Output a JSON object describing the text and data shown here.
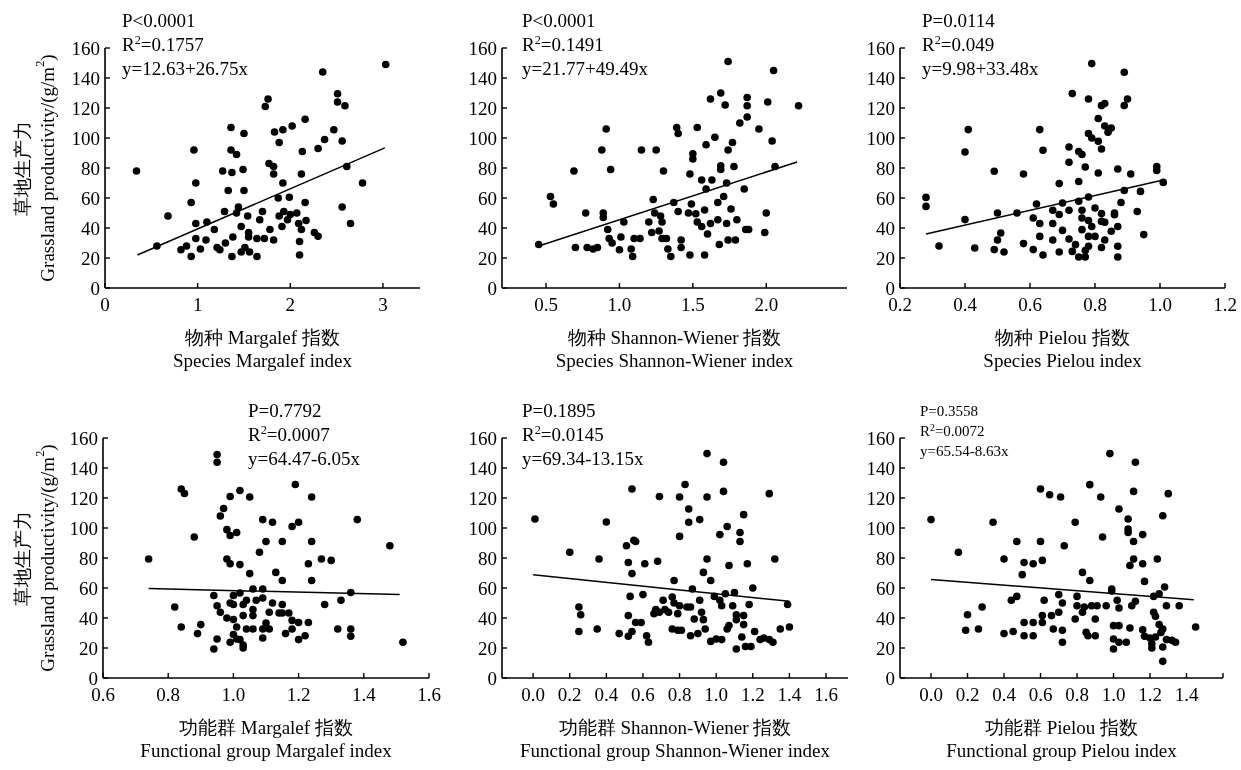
{
  "chart_data": [
    {
      "type": "scatter",
      "xlabel": "物种 Margalef 指数\nSpecies Margalef index",
      "ylabel": "草地生产力\nGrassland productivity/(g/m$^{2}$)",
      "annotations": [
        "P<0.0001",
        "R$^{2}$=0.1757",
        "y=12.63+26.75x"
      ],
      "marker": "circle",
      "xlim": [
        0,
        3.4
      ],
      "xticks": [
        0,
        1,
        2,
        3
      ],
      "ylim": [
        0,
        160
      ],
      "yticks": [
        0,
        20,
        40,
        60,
        80,
        100,
        120,
        140,
        160
      ],
      "series": [
        {
          "type": "scatter",
          "color": "#000000",
          "x": [
            0.34,
            0.56,
            0.68,
            0.82,
            0.88,
            0.93,
            0.93,
            0.96,
            0.98,
            0.98,
            0.98,
            1.03,
            1.09,
            1.1,
            1.18,
            1.21,
            1.24,
            1.27,
            1.29,
            1.3,
            1.33,
            1.36,
            1.36,
            1.37,
            1.37,
            1.38,
            1.42,
            1.42,
            1.44,
            1.47,
            1.47,
            1.49,
            1.5,
            1.5,
            1.51,
            1.54,
            1.55,
            1.55,
            1.56,
            1.64,
            1.64,
            1.67,
            1.7,
            1.72,
            1.73,
            1.76,
            1.77,
            1.78,
            1.82,
            1.82,
            1.82,
            1.83,
            1.88,
            1.87,
            1.88,
            1.91,
            1.92,
            1.92,
            1.93,
            1.97,
            1.99,
            2.0,
            2.02,
            2.07,
            2.09,
            2.1,
            2.1,
            2.12,
            2.12,
            2.13,
            2.16,
            2.16,
            2.17,
            2.26,
            2.3,
            2.3,
            2.35,
            2.37,
            2.47,
            2.51,
            2.51,
            2.56,
            2.56,
            2.59,
            2.61,
            2.65,
            2.78,
            3.03
          ],
          "values": [
            78,
            28,
            48,
            25.5,
            28,
            21,
            57,
            92,
            70,
            43,
            33,
            26,
            32,
            44,
            39,
            27,
            25.5,
            78,
            51,
            30,
            65,
            92,
            107,
            77,
            21,
            34,
            89,
            50,
            54,
            41,
            24,
            79,
            103,
            65,
            27,
            48,
            37,
            34,
            24,
            21,
            33,
            45.5,
            51,
            33,
            121,
            126,
            83,
            39,
            32,
            81,
            76,
            104,
            97,
            60,
            48,
            41,
            70,
            105.5,
            51,
            45.5,
            60.5,
            49,
            108,
            50,
            43,
            22,
            31,
            76,
            39,
            91,
            57,
            112.5,
            45,
            37,
            34.5,
            93,
            144,
            99,
            105.5,
            129.5,
            124,
            98,
            54,
            121.5,
            81,
            43,
            70,
            149
          ]
        },
        {
          "type": "line",
          "marker": "none",
          "color": "#000000",
          "x": [
            0.35,
            3.02
          ],
          "values": [
            22,
            93.4
          ]
        }
      ]
    },
    {
      "type": "scatter",
      "xlabel": "物种 Shannon-Wiener 指数\nSpecies Shannon-Wiener index",
      "annotations": [
        "P<0.0001",
        "R$^{2}$=0.1491",
        "y=21.77+49.49x"
      ],
      "marker": "circle",
      "xlim": [
        0.2,
        2.55
      ],
      "xticks": [
        0.5,
        {
          "value": 1,
          "label": "1.0"
        },
        1.5,
        {
          "value": 2,
          "label": "2.0"
        }
      ],
      "ylim": [
        0,
        160
      ],
      "yticks": [
        0,
        20,
        40,
        60,
        80,
        100,
        120,
        140,
        160
      ],
      "series": [
        {
          "type": "scatter",
          "color": "#000000",
          "x": [
            0.45,
            0.53,
            0.55,
            0.69,
            0.7,
            0.77,
            0.78,
            0.82,
            0.85,
            0.88,
            0.89,
            0.89,
            0.91,
            0.92,
            0.93,
            0.94,
            0.95,
            1.0,
            1.01,
            1.03,
            1.08,
            1.09,
            1.1,
            1.14,
            1.15,
            1.2,
            1.22,
            1.23,
            1.24,
            1.25,
            1.27,
            1.28,
            1.29,
            1.29,
            1.3,
            1.32,
            1.33,
            1.35,
            1.37,
            1.39,
            1.4,
            1.4,
            1.42,
            1.42,
            1.47,
            1.48,
            1.48,
            1.49,
            1.5,
            1.5,
            1.52,
            1.53,
            1.53,
            1.56,
            1.56,
            1.58,
            1.58,
            1.59,
            1.6,
            1.59,
            1.62,
            1.62,
            1.63,
            1.65,
            1.67,
            1.67,
            1.68,
            1.69,
            1.69,
            1.69,
            1.71,
            1.72,
            1.73,
            1.73,
            1.74,
            1.74,
            1.74,
            1.76,
            1.77,
            1.78,
            1.79,
            1.8,
            1.82,
            1.85,
            1.86,
            1.87,
            1.87,
            1.87,
            1.88,
            1.95,
            1.99,
            2.0,
            2.01,
            2.04,
            2.05,
            2.06,
            2.22
          ],
          "values": [
            29,
            61,
            56,
            78,
            27,
            50,
            27,
            26,
            27,
            92,
            50,
            47,
            106,
            39,
            33,
            79,
            30,
            25.5,
            34,
            44,
            26,
            21,
            33,
            33,
            92,
            44,
            37,
            59,
            50,
            92,
            38,
            48,
            33,
            44,
            78,
            33,
            26,
            21,
            57,
            107,
            103,
            51,
            32,
            27,
            50,
            76,
            22,
            56,
            86,
            89.5,
            49.5,
            44,
            107,
            72,
            41,
            22,
            52,
            95.5,
            36,
            66,
            43,
            126,
            72,
            100.5,
            57,
            45.5,
            29,
            130,
            81.5,
            79,
            61,
            122,
            70,
            43,
            151,
            32,
            92,
            52.7,
            97,
            81,
            32,
            45.5,
            110,
            66,
            39,
            114,
            121.5,
            127,
            39,
            106,
            37,
            50,
            124,
            98,
            145,
            81,
            121.5
          ]
        },
        {
          "type": "line",
          "marker": "none",
          "color": "#000000",
          "x": [
            0.45,
            2.21
          ],
          "values": [
            28,
            84
          ]
        }
      ]
    },
    {
      "type": "scatter",
      "xlabel": "物种 Pielou 指数\nSpecies Pielou index",
      "annotations": [
        "P=0.0114",
        "R$^{2}$=0.049",
        "y=9.98+33.48x"
      ],
      "marker": "circle",
      "xlim": [
        0.2,
        1.2
      ],
      "xticks": [
        0.2,
        0.4,
        0.6,
        0.8,
        {
          "value": 1,
          "label": "1.0"
        },
        1.2
      ],
      "ylim": [
        0,
        160
      ],
      "yticks": [
        0,
        20,
        40,
        60,
        80,
        100,
        120,
        140,
        160
      ],
      "series": [
        {
          "type": "scatter",
          "color": "#000000",
          "x": [
            0.28,
            0.28,
            0.32,
            0.4,
            0.41,
            0.4,
            0.43,
            0.49,
            0.49,
            0.5,
            0.5,
            0.51,
            0.52,
            0.56,
            0.58,
            0.58,
            0.61,
            0.62,
            0.61,
            0.63,
            0.63,
            0.63,
            0.64,
            0.64,
            0.67,
            0.67,
            0.67,
            0.69,
            0.69,
            0.69,
            0.7,
            0.7,
            0.72,
            0.72,
            0.72,
            0.72,
            0.73,
            0.73,
            0.74,
            0.75,
            0.75,
            0.75,
            0.75,
            0.76,
            0.76,
            0.76,
            0.76,
            0.77,
            0.77,
            0.77,
            0.78,
            0.78,
            0.78,
            0.78,
            0.78,
            0.78,
            0.79,
            0.79,
            0.79,
            0.8,
            0.8,
            0.81,
            0.81,
            0.81,
            0.82,
            0.82,
            0.82,
            0.82,
            0.82,
            0.83,
            0.83,
            0.83,
            0.83,
            0.84,
            0.85,
            0.85,
            0.86,
            0.86,
            0.87,
            0.87,
            0.87,
            0.87,
            0.88,
            0.89,
            0.89,
            0.89,
            0.9,
            0.91,
            0.93,
            0.94,
            0.95,
            0.99,
            0.99,
            1.01
          ],
          "values": [
            60.4,
            54.4,
            28,
            90.7,
            105.6,
            45.6,
            26.7,
            77.8,
            25.6,
            50,
            32,
            36.7,
            24,
            50,
            76,
            29.6,
            46.7,
            56,
            25.6,
            105.6,
            43,
            34.4,
            22,
            91.8,
            43,
            51.8,
            32,
            24,
            69.6,
            49,
            38.4,
            56.7,
            32.7,
            94,
            83.8,
            51.8,
            129.6,
            24.4,
            28.9,
            71,
            91,
            20.7,
            57.8,
            38.9,
            51.8,
            89,
            46.7,
            25,
            20.7,
            80.7,
            34.4,
            126,
            103,
            60.7,
            45,
            27.8,
            149.6,
            100,
            41,
            34.4,
            53.3,
            97.8,
            113,
            76.7,
            44.4,
            121.6,
            49.6,
            92.7,
            27,
            108,
            43.8,
            123,
            32,
            103.8,
            37.8,
            106.7,
            48.9,
            50,
            41,
            79.3,
            27.8,
            20.7,
            57,
            65,
            143.8,
            121.6,
            126,
            76,
            51,
            64.4,
            35.6,
            78.4,
            81,
            70.4
          ]
        },
        {
          "type": "line",
          "marker": "none",
          "color": "#000000",
          "x": [
            0.28,
            1.01
          ],
          "values": [
            36,
            72
          ]
        }
      ]
    },
    {
      "type": "scatter",
      "xlabel": "功能群 Margalef 指数\nFunctional group Margalef index",
      "ylabel": "草地生产力\nGrassland productivity/(g/m$^{2}$)",
      "annotations": [
        "P=0.7792",
        "R$^{2}$=0.0007",
        "y=64.47-6.05x"
      ],
      "marker": "circle",
      "xlim": [
        0.6,
        1.6
      ],
      "xticks": [
        0.6,
        0.8,
        {
          "value": 1,
          "label": "1.0"
        },
        1.2,
        1.4,
        1.6
      ],
      "ylim": [
        0,
        160
      ],
      "yticks": [
        0,
        20,
        40,
        60,
        80,
        100,
        120,
        140,
        160
      ],
      "series": [
        {
          "type": "scatter",
          "color": "#000000",
          "x": [
            0.74,
            0.82,
            0.84,
            0.84,
            0.85,
            0.88,
            0.89,
            0.9,
            0.94,
            0.94,
            0.95,
            0.95,
            0.95,
            0.95,
            0.96,
            0.96,
            0.97,
            0.98,
            0.98,
            0.98,
            0.99,
            0.99,
            0.99,
            0.99,
            0.99,
            1.0,
            1.0,
            1.0,
            1.0,
            1.01,
            1.01,
            1.01,
            1.02,
            1.02,
            1.02,
            1.02,
            1.03,
            1.03,
            1.03,
            1.03,
            1.04,
            1.04,
            1.05,
            1.05,
            1.06,
            1.06,
            1.06,
            1.06,
            1.07,
            1.08,
            1.09,
            1.09,
            1.09,
            1.09,
            1.09,
            1.1,
            1.1,
            1.11,
            1.11,
            1.12,
            1.12,
            1.13,
            1.14,
            1.15,
            1.15,
            1.15,
            1.15,
            1.16,
            1.17,
            1.18,
            1.18,
            1.18,
            1.19,
            1.2,
            1.2,
            1.2,
            1.22,
            1.23,
            1.23,
            1.24,
            1.24,
            1.24,
            1.27,
            1.28,
            1.3,
            1.32,
            1.33,
            1.36,
            1.36,
            1.36,
            1.38,
            1.48,
            1.52
          ],
          "values": [
            79.3,
            47.3,
            34,
            126,
            123,
            94,
            29.6,
            35.6,
            19.3,
            55,
            26,
            149,
            143.8,
            48.2,
            43.8,
            108,
            113,
            79.3,
            98.9,
            40,
            50,
            23.8,
            76.2,
            121,
            95,
            29,
            55,
            39,
            49,
            97,
            26,
            34,
            125,
            56.7,
            25.6,
            75.6,
            49,
            22,
            41.6,
            20,
            32.7,
            51.8,
            120.7,
            69.6,
            45.6,
            59.3,
            41.6,
            32.7,
            51.8,
            83.8,
            26.7,
            105.6,
            59.3,
            32.7,
            53.3,
            91,
            36.7,
            43.8,
            32.7,
            50,
            103.8,
            70.4,
            43.3,
            91,
            65,
            49,
            43.3,
            29.6,
            43.3,
            101,
            38.4,
            32.7,
            129,
            103.8,
            25.6,
            37,
            28.2,
            37,
            76.2,
            120.7,
            91,
            65,
            79.3,
            49,
            78.4,
            32.7,
            51.8,
            57,
            32.7,
            27.8,
            105.6,
            88.2,
            23.8
          ]
        },
        {
          "type": "line",
          "marker": "none",
          "color": "#000000",
          "x": [
            0.74,
            1.51
          ],
          "values": [
            59.6,
            55.6
          ]
        }
      ]
    },
    {
      "type": "scatter",
      "xlabel": "功能群 Shannon-Wiener 指数\nFunctional group Shannon-Wiener index",
      "annotations": [
        "P=0.1895",
        "R$^{2}$=0.0145",
        "y=69.34-13.15x"
      ],
      "marker": "circle",
      "xlim": [
        -0.17,
        1.72
      ],
      "xticks": [
        {
          "value": 0,
          "label": "0.0"
        },
        0.2,
        0.4,
        0.6,
        0.8,
        {
          "value": 1,
          "label": "1.0"
        },
        1.2,
        1.4,
        1.6
      ],
      "ylim": [
        0,
        160
      ],
      "yticks": [
        0,
        20,
        40,
        60,
        80,
        100,
        120,
        140,
        160
      ],
      "series": [
        {
          "type": "scatter",
          "color": "#000000",
          "x": [
            0.01,
            0.2,
            0.25,
            0.26,
            0.25,
            0.35,
            0.36,
            0.4,
            0.47,
            0.51,
            0.52,
            0.52,
            0.52,
            0.53,
            0.54,
            0.54,
            0.54,
            0.55,
            0.56,
            0.56,
            0.59,
            0.6,
            0.61,
            0.62,
            0.63,
            0.66,
            0.67,
            0.68,
            0.69,
            0.69,
            0.71,
            0.72,
            0.74,
            0.76,
            0.76,
            0.77,
            0.77,
            0.79,
            0.79,
            0.8,
            0.8,
            0.8,
            0.81,
            0.83,
            0.84,
            0.85,
            0.85,
            0.86,
            0.86,
            0.87,
            0.88,
            0.9,
            0.91,
            0.91,
            0.92,
            0.93,
            0.93,
            0.94,
            0.95,
            0.95,
            0.95,
            0.97,
            0.97,
            0.99,
            1.0,
            1.02,
            1.02,
            1.03,
            1.03,
            1.04,
            1.04,
            1.05,
            1.06,
            1.06,
            1.07,
            1.07,
            1.09,
            1.1,
            1.11,
            1.11,
            1.11,
            1.13,
            1.13,
            1.14,
            1.15,
            1.15,
            1.15,
            1.16,
            1.17,
            1.18,
            1.19,
            1.2,
            1.21,
            1.24,
            1.26,
            1.29,
            1.29,
            1.31,
            1.32,
            1.35,
            1.39,
            1.4
          ],
          "values": [
            106,
            83.8,
            47.3,
            42.2,
            31,
            32.7,
            79.3,
            104,
            29.6,
            88.2,
            27.8,
            41.6,
            77,
            54.4,
            126,
            69.6,
            31,
            91.8,
            91,
            37,
            37,
            55.6,
            76.2,
            28.2,
            23.8,
            42.9,
            45.6,
            77.8,
            121,
            43.8,
            51.8,
            45.6,
            43.8,
            32.7,
            54,
            65,
            50,
            31.8,
            42.9,
            48.2,
            120.7,
            94.4,
            31.8,
            129,
            47.3,
            103.8,
            112.7,
            47.3,
            28.2,
            59.3,
            39.3,
            29.6,
            105.6,
            51.8,
            43.8,
            70.4,
            38.9,
            32.7,
            79.3,
            149.6,
            120.7,
            65,
            24.4,
            54.4,
            26,
            51.8,
            95.6,
            48.2,
            25.6,
            124.4,
            143.8,
            56.2,
            101,
            32.7,
            75,
            35,
            48.2,
            57,
            42.2,
            38.9,
            19.3,
            97,
            91,
            27.3,
            41.6,
            35.6,
            108.9,
            21,
            76.2,
            49,
            21,
            60,
            31,
            25.6,
            26.7,
            122.9,
            25.6,
            23.8,
            79.3,
            32.7,
            49,
            34
          ]
        },
        {
          "type": "line",
          "marker": "none",
          "color": "#000000",
          "x": [
            0,
            1.4
          ],
          "values": [
            68.9,
            51.1
          ]
        }
      ]
    },
    {
      "type": "scatter",
      "xlabel": "功能群 Pielou 指数\nFunctional group Pielou index",
      "annotations": [
        "P=0.3558",
        "R$^{2}$=0.0072",
        "y=65.54-8.63x"
      ],
      "marker": "circle",
      "xlim": [
        -0.17,
        1.6
      ],
      "xticks": [
        {
          "value": 0,
          "label": "0.0"
        },
        0.2,
        0.4,
        0.6,
        0.8,
        {
          "value": 1,
          "label": "1.0"
        },
        1.2,
        1.4,
        {
          "value": 1.6,
          "label": null
        }
      ],
      "ylim": [
        0,
        160
      ],
      "yticks": [
        0,
        20,
        40,
        60,
        80,
        100,
        120,
        140,
        160
      ],
      "series": [
        {
          "type": "scatter",
          "color": "#000000",
          "x": [
            0.0,
            0.15,
            0.19,
            0.2,
            0.26,
            0.28,
            0.34,
            0.4,
            0.4,
            0.44,
            0.45,
            0.47,
            0.47,
            0.5,
            0.51,
            0.51,
            0.51,
            0.56,
            0.56,
            0.56,
            0.6,
            0.6,
            0.61,
            0.61,
            0.61,
            0.62,
            0.65,
            0.66,
            0.67,
            0.7,
            0.7,
            0.71,
            0.72,
            0.72,
            0.72,
            0.73,
            0.79,
            0.79,
            0.8,
            0.8,
            0.83,
            0.83,
            0.84,
            0.85,
            0.86,
            0.87,
            0.87,
            0.88,
            0.9,
            0.9,
            0.91,
            0.93,
            0.94,
            0.96,
            0.98,
            0.99,
            0.99,
            1.0,
            1.0,
            1.0,
            1.02,
            1.03,
            1.03,
            1.03,
            1.03,
            1.07,
            1.08,
            1.08,
            1.08,
            1.09,
            1.09,
            1.1,
            1.11,
            1.11,
            1.11,
            1.12,
            1.12,
            1.16,
            1.16,
            1.16,
            1.17,
            1.17,
            1.2,
            1.21,
            1.21,
            1.22,
            1.22,
            1.23,
            1.23,
            1.24,
            1.25,
            1.25,
            1.26,
            1.27,
            1.27,
            1.27,
            1.27,
            1.28,
            1.29,
            1.29,
            1.3,
            1.32,
            1.34,
            1.36,
            1.45
          ],
          "values": [
            105.6,
            83.8,
            31.8,
            42.2,
            32.7,
            47.3,
            103.8,
            79.3,
            29.6,
            51.8,
            31,
            91,
            54.4,
            68.9,
            77,
            37,
            28.2,
            76.2,
            37,
            28.2,
            126,
            91,
            78.4,
            41.6,
            37,
            51.8,
            122.2,
            41.6,
            32.7,
            43.8,
            55.6,
            120.7,
            31.8,
            23.8,
            50,
            88.2,
            39.3,
            103.8,
            54.4,
            48.2,
            70.4,
            43.8,
            47.3,
            30.4,
            28.2,
            128.9,
            65,
            48.2,
            39.3,
            28.2,
            48.2,
            120.7,
            94,
            48.2,
            149.6,
            58,
            59.3,
            26,
            19.3,
            34.9,
            51.8,
            112.7,
            46.7,
            34.9,
            23.8,
            23.8,
            106,
            99.3,
            97,
            33.3,
            75,
            48.2,
            91,
            79.3,
            124.4,
            143.8,
            51.1,
            76.2,
            95.6,
            32.2,
            64.4,
            27.8,
            26.7,
            22.9,
            20,
            54.4,
            43.8,
            27.3,
            41.1,
            79.3,
            56.2,
            35.6,
            30.4,
            108.2,
            20.7,
            11.1,
            32.7,
            60.7,
            48.2,
            25.6,
            122.9,
            25.1,
            23.8,
            48.2,
            34
          ]
        },
        {
          "type": "line",
          "marker": "none",
          "color": "#000000",
          "x": [
            0,
            1.44
          ],
          "values": [
            65.6,
            52.2
          ]
        }
      ]
    }
  ]
}
